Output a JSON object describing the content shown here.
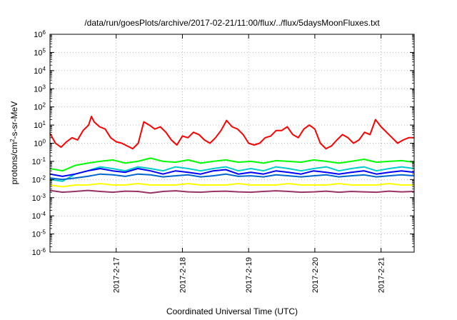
{
  "chart_data": {
    "type": "line",
    "title": "/data/run/goesPlots/archive/2017-02-21/11:00/flux/../flux/5daysMoonFluxes.txt",
    "xlabel": "Coordinated Universal Time (UTC)",
    "ylabel_base": "protons/cm",
    "ylabel_sup": "2",
    "ylabel_rest": "-s-sr-MeV",
    "yscale": "log",
    "ylim_exp": [
      -6,
      6
    ],
    "y_tick_base": "10",
    "y_ticks": [
      -6,
      -5,
      -4,
      -3,
      -2,
      -1,
      0,
      1,
      2,
      3,
      4,
      5,
      6
    ],
    "x_ticks": [
      "2017-2-17",
      "2017-2-18",
      "2017-2-19",
      "2017-2-20",
      "2017-2-21"
    ],
    "xlim": [
      "2017-02-16T00:00",
      "2017-02-21T12:00"
    ],
    "grid": true,
    "series": [
      {
        "color": "#ff0000",
        "x": [
          "2017-02-16T00:00",
          "2017-02-16T02:00",
          "2017-02-16T04:00",
          "2017-02-16T06:00",
          "2017-02-16T08:00",
          "2017-02-16T10:00",
          "2017-02-16T12:00",
          "2017-02-16T14:00",
          "2017-02-16T15:00",
          "2017-02-16T16:00",
          "2017-02-16T18:00",
          "2017-02-16T20:00",
          "2017-02-16T22:00",
          "2017-02-17T00:00",
          "2017-02-17T02:00",
          "2017-02-17T04:00",
          "2017-02-17T06:00",
          "2017-02-17T08:00",
          "2017-02-17T10:00",
          "2017-02-17T12:00",
          "2017-02-17T14:00",
          "2017-02-17T16:00",
          "2017-02-17T18:00",
          "2017-02-17T20:00",
          "2017-02-17T22:00",
          "2017-02-18T00:00",
          "2017-02-18T02:00",
          "2017-02-18T04:00",
          "2017-02-18T06:00",
          "2017-02-18T08:00",
          "2017-02-18T10:00",
          "2017-02-18T12:00",
          "2017-02-18T14:00",
          "2017-02-18T16:00",
          "2017-02-18T18:00",
          "2017-02-18T20:00",
          "2017-02-18T22:00",
          "2017-02-19T00:00",
          "2017-02-19T02:00",
          "2017-02-19T04:00",
          "2017-02-19T06:00",
          "2017-02-19T08:00",
          "2017-02-19T10:00",
          "2017-02-19T12:00",
          "2017-02-19T14:00",
          "2017-02-19T16:00",
          "2017-02-19T18:00",
          "2017-02-19T20:00",
          "2017-02-19T22:00",
          "2017-02-20T00:00",
          "2017-02-20T02:00",
          "2017-02-20T04:00",
          "2017-02-20T06:00",
          "2017-02-20T08:00",
          "2017-02-20T10:00",
          "2017-02-20T12:00",
          "2017-02-20T14:00",
          "2017-02-20T16:00",
          "2017-02-20T18:00",
          "2017-02-20T20:00",
          "2017-02-20T22:00",
          "2017-02-21T00:00",
          "2017-02-21T02:00",
          "2017-02-21T04:00",
          "2017-02-21T06:00",
          "2017-02-21T08:00",
          "2017-02-21T10:00",
          "2017-02-21T12:00"
        ],
        "y": [
          3.5,
          1.0,
          0.6,
          1.2,
          2.0,
          1.5,
          5.0,
          10,
          30,
          15,
          8,
          6,
          2,
          1.2,
          1.0,
          0.7,
          0.5,
          1.0,
          15,
          10,
          6,
          8,
          4,
          1.5,
          0.8,
          2.5,
          2.0,
          4,
          3,
          1.5,
          1.0,
          2.0,
          5,
          18,
          8,
          6,
          3,
          1.0,
          0.8,
          1.0,
          2.0,
          2.5,
          5,
          5,
          8,
          3,
          2,
          6,
          10,
          6,
          1.0,
          0.5,
          0.7,
          1.5,
          3,
          2,
          1.0,
          1.5,
          4,
          3,
          20,
          8,
          4,
          2,
          1.0,
          1.5,
          2,
          2
        ]
      },
      {
        "color": "#00ff00",
        "x_range": [
          "2017-02-16T00:00",
          "2017-02-21T12:00"
        ],
        "y": [
          0.04,
          0.03,
          0.06,
          0.08,
          0.1,
          0.12,
          0.08,
          0.1,
          0.15,
          0.1,
          0.09,
          0.12,
          0.08,
          0.1,
          0.12,
          0.09,
          0.1,
          0.08,
          0.11,
          0.1,
          0.09,
          0.12,
          0.1,
          0.08,
          0.1,
          0.13,
          0.09,
          0.1,
          0.11,
          0.09
        ]
      },
      {
        "color": "#00cccc",
        "x_range": [
          "2017-02-16T00:00",
          "2017-02-21T12:00"
        ],
        "y": [
          0.01,
          0.008,
          0.02,
          0.03,
          0.05,
          0.04,
          0.03,
          0.05,
          0.04,
          0.03,
          0.05,
          0.04,
          0.03,
          0.04,
          0.05,
          0.03,
          0.04,
          0.03,
          0.05,
          0.04,
          0.03,
          0.04,
          0.05,
          0.03,
          0.04,
          0.05,
          0.03,
          0.04,
          0.05,
          0.04
        ]
      },
      {
        "color": "#0000ff",
        "x_range": [
          "2017-02-16T00:00",
          "2017-02-21T12:00"
        ],
        "y": [
          0.02,
          0.015,
          0.02,
          0.03,
          0.04,
          0.03,
          0.025,
          0.04,
          0.03,
          0.02,
          0.03,
          0.025,
          0.02,
          0.03,
          0.035,
          0.02,
          0.025,
          0.02,
          0.03,
          0.025,
          0.02,
          0.03,
          0.025,
          0.02,
          0.025,
          0.03,
          0.02,
          0.025,
          0.03,
          0.025
        ]
      },
      {
        "color": "#0066cc",
        "x_range": [
          "2017-02-16T00:00",
          "2017-02-21T12:00"
        ],
        "y": [
          0.012,
          0.01,
          0.012,
          0.015,
          0.02,
          0.018,
          0.015,
          0.02,
          0.018,
          0.014,
          0.016,
          0.018,
          0.014,
          0.016,
          0.02,
          0.015,
          0.016,
          0.014,
          0.018,
          0.016,
          0.014,
          0.016,
          0.018,
          0.014,
          0.016,
          0.018,
          0.014,
          0.016,
          0.018,
          0.016
        ]
      },
      {
        "color": "#ffff00",
        "x_range": [
          "2017-02-16T00:00",
          "2017-02-21T12:00"
        ],
        "y": [
          0.005,
          0.004,
          0.005,
          0.005,
          0.006,
          0.005,
          0.005,
          0.006,
          0.005,
          0.005,
          0.005,
          0.006,
          0.005,
          0.005,
          0.005,
          0.006,
          0.005,
          0.005,
          0.005,
          0.006,
          0.005,
          0.005,
          0.005,
          0.006,
          0.005,
          0.005,
          0.005,
          0.006,
          0.005,
          0.005
        ]
      },
      {
        "color": "#993366",
        "x_range": [
          "2017-02-16T00:00",
          "2017-02-21T12:00"
        ],
        "y": [
          0.0025,
          0.002,
          0.0022,
          0.0025,
          0.0022,
          0.002,
          0.0023,
          0.0022,
          0.0018,
          0.0022,
          0.0024,
          0.0021,
          0.002,
          0.0022,
          0.0023,
          0.0021,
          0.002,
          0.0022,
          0.0024,
          0.0022,
          0.002,
          0.0021,
          0.0023,
          0.002,
          0.0022,
          0.0021,
          0.002,
          0.0023,
          0.0021,
          0.0022
        ]
      }
    ]
  }
}
